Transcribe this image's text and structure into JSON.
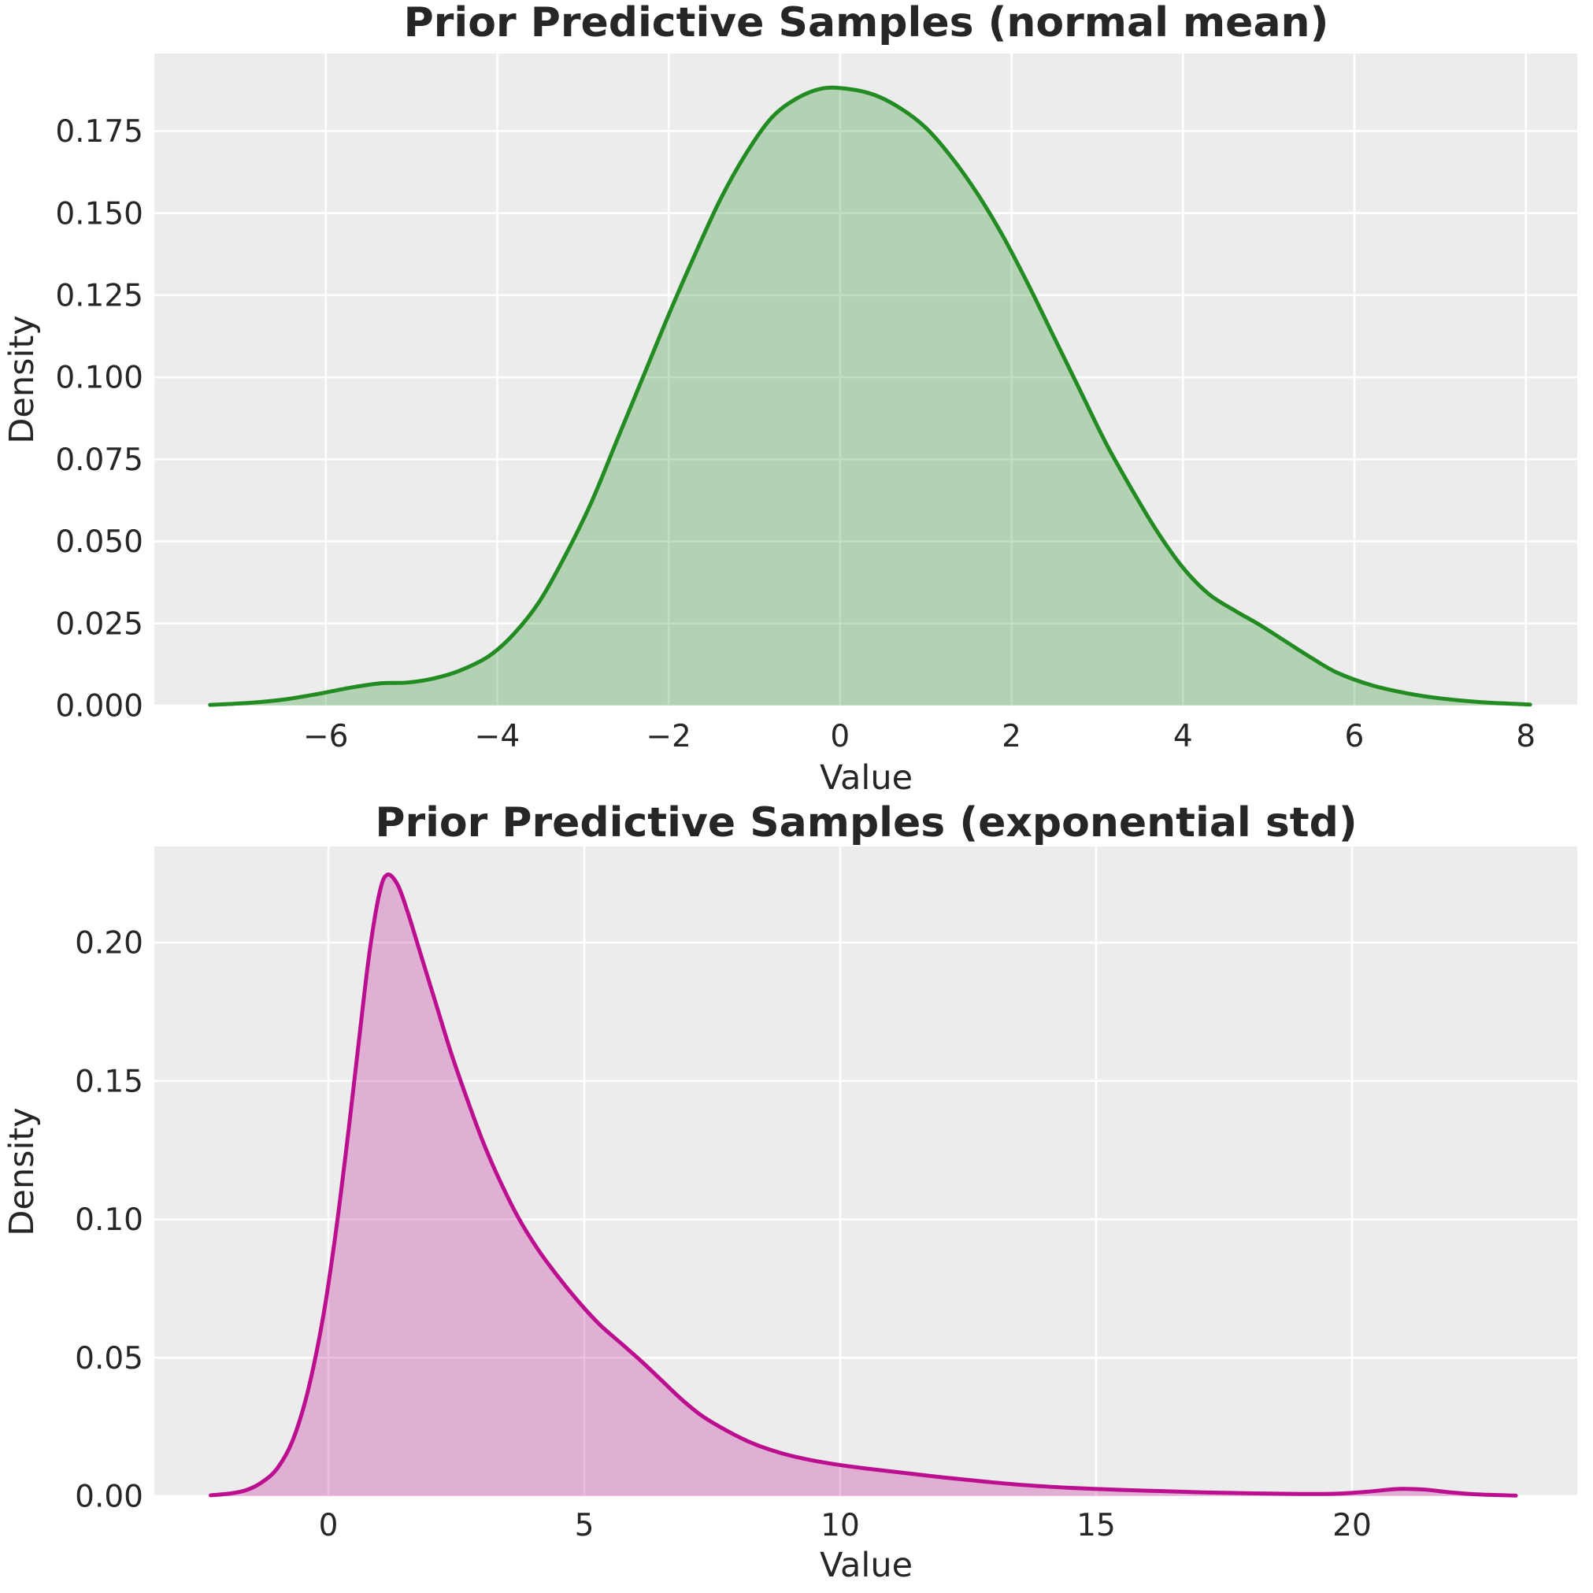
{
  "figure": {
    "background_color": "#ffffff",
    "plot_background_color": "#ececec",
    "grid_color": "#ffffff",
    "text_color": "#262626"
  },
  "chart_data": [
    {
      "type": "area",
      "title": "Prior Predictive Samples (normal mean)",
      "xlabel": "Value",
      "ylabel": "Density",
      "line_color": "#228b22",
      "fill_color": "#228b22",
      "fill_opacity": 0.28,
      "line_width": 5,
      "grid": true,
      "legend_position": "none",
      "xlim": [
        -8.0,
        8.6
      ],
      "ylim": [
        0,
        0.1986
      ],
      "xticks": [
        -6,
        -4,
        -2,
        0,
        2,
        4,
        6,
        8
      ],
      "xtick_labels": [
        "−6",
        "−4",
        "−2",
        "0",
        "2",
        "4",
        "6",
        "8"
      ],
      "yticks": [
        0.0,
        0.025,
        0.05,
        0.075,
        0.1,
        0.125,
        0.15,
        0.175
      ],
      "ytick_labels": [
        "0.000",
        "0.025",
        "0.050",
        "0.075",
        "0.100",
        "0.125",
        "0.150",
        "0.175"
      ],
      "points": [
        [
          -7.35,
          0.0002
        ],
        [
          -6.9,
          0.0008
        ],
        [
          -6.5,
          0.0018
        ],
        [
          -6.1,
          0.0035
        ],
        [
          -5.7,
          0.0055
        ],
        [
          -5.35,
          0.0068
        ],
        [
          -5.05,
          0.007
        ],
        [
          -4.75,
          0.0082
        ],
        [
          -4.45,
          0.0105
        ],
        [
          -4.1,
          0.015
        ],
        [
          -3.8,
          0.022
        ],
        [
          -3.5,
          0.032
        ],
        [
          -3.2,
          0.046
        ],
        [
          -2.9,
          0.062
        ],
        [
          -2.6,
          0.081
        ],
        [
          -2.3,
          0.1
        ],
        [
          -2.0,
          0.119
        ],
        [
          -1.7,
          0.137
        ],
        [
          -1.4,
          0.154
        ],
        [
          -1.1,
          0.168
        ],
        [
          -0.8,
          0.179
        ],
        [
          -0.5,
          0.185
        ],
        [
          -0.2,
          0.188
        ],
        [
          0.1,
          0.1878
        ],
        [
          0.4,
          0.186
        ],
        [
          0.7,
          0.182
        ],
        [
          1.0,
          0.176
        ],
        [
          1.3,
          0.167
        ],
        [
          1.6,
          0.156
        ],
        [
          1.9,
          0.143
        ],
        [
          2.2,
          0.128
        ],
        [
          2.5,
          0.112
        ],
        [
          2.8,
          0.096
        ],
        [
          3.1,
          0.08
        ],
        [
          3.4,
          0.066
        ],
        [
          3.7,
          0.053
        ],
        [
          4.0,
          0.042
        ],
        [
          4.3,
          0.034
        ],
        [
          4.6,
          0.029
        ],
        [
          4.9,
          0.0245
        ],
        [
          5.2,
          0.0195
        ],
        [
          5.5,
          0.0145
        ],
        [
          5.8,
          0.01
        ],
        [
          6.2,
          0.0062
        ],
        [
          6.6,
          0.0038
        ],
        [
          7.0,
          0.0022
        ],
        [
          7.5,
          0.001
        ],
        [
          8.05,
          0.0003
        ]
      ]
    },
    {
      "type": "area",
      "title": "Prior Predictive Samples (exponential std)",
      "xlabel": "Value",
      "ylabel": "Density",
      "line_color": "#bb0f90",
      "fill_color": "#bb0f90",
      "fill_opacity": 0.27,
      "line_width": 5,
      "grid": true,
      "legend_position": "none",
      "xlim": [
        -3.4,
        24.4
      ],
      "ylim": [
        0,
        0.2347
      ],
      "xticks": [
        0,
        5,
        10,
        15,
        20
      ],
      "xtick_labels": [
        "0",
        "5",
        "10",
        "15",
        "20"
      ],
      "yticks": [
        0.0,
        0.05,
        0.1,
        0.15,
        0.2
      ],
      "ytick_labels": [
        "0.00",
        "0.05",
        "0.10",
        "0.15",
        "0.20"
      ],
      "points": [
        [
          -2.3,
          0.0003
        ],
        [
          -1.9,
          0.001
        ],
        [
          -1.6,
          0.0022
        ],
        [
          -1.3,
          0.005
        ],
        [
          -1.0,
          0.01
        ],
        [
          -0.7,
          0.02
        ],
        [
          -0.4,
          0.038
        ],
        [
          -0.1,
          0.065
        ],
        [
          0.15,
          0.096
        ],
        [
          0.4,
          0.133
        ],
        [
          0.6,
          0.165
        ],
        [
          0.8,
          0.196
        ],
        [
          1.0,
          0.218
        ],
        [
          1.15,
          0.2245
        ],
        [
          1.35,
          0.221
        ],
        [
          1.55,
          0.211
        ],
        [
          1.8,
          0.196
        ],
        [
          2.1,
          0.178
        ],
        [
          2.4,
          0.16
        ],
        [
          2.7,
          0.144
        ],
        [
          3.0,
          0.129
        ],
        [
          3.3,
          0.116
        ],
        [
          3.7,
          0.101
        ],
        [
          4.1,
          0.089
        ],
        [
          4.5,
          0.079
        ],
        [
          4.9,
          0.07
        ],
        [
          5.3,
          0.062
        ],
        [
          5.7,
          0.0555
        ],
        [
          6.1,
          0.049
        ],
        [
          6.5,
          0.042
        ],
        [
          6.9,
          0.035
        ],
        [
          7.3,
          0.029
        ],
        [
          7.8,
          0.0235
        ],
        [
          8.3,
          0.019
        ],
        [
          8.8,
          0.0158
        ],
        [
          9.3,
          0.0135
        ],
        [
          9.9,
          0.0115
        ],
        [
          10.5,
          0.01
        ],
        [
          11.2,
          0.0085
        ],
        [
          12.0,
          0.0068
        ],
        [
          12.8,
          0.0053
        ],
        [
          13.6,
          0.004
        ],
        [
          14.5,
          0.003
        ],
        [
          15.4,
          0.0023
        ],
        [
          16.3,
          0.0018
        ],
        [
          17.2,
          0.0013
        ],
        [
          18.1,
          0.001
        ],
        [
          19.0,
          0.0008
        ],
        [
          19.7,
          0.0009
        ],
        [
          20.3,
          0.0016
        ],
        [
          20.9,
          0.0026
        ],
        [
          21.4,
          0.0024
        ],
        [
          21.9,
          0.0014
        ],
        [
          22.5,
          0.0006
        ],
        [
          23.2,
          0.0002
        ]
      ]
    }
  ]
}
